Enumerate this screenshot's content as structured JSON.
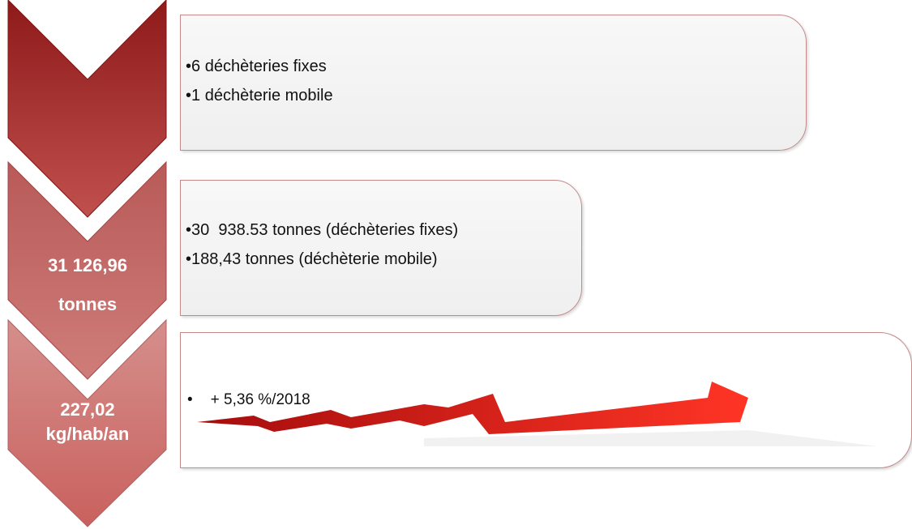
{
  "steps": [
    {
      "items": [
        "6 déchèteries fixes",
        "1 déchèterie mobile"
      ]
    },
    {
      "label": [
        "31 126,96",
        "tonnes"
      ],
      "items": [
        "30  938.53 tonnes (déchèteries fixes)",
        "188,43 tonnes (déchèterie mobile)"
      ]
    },
    {
      "label": [
        "227,02",
        "kg/hab/an"
      ],
      "items": [
        "+ 5,36 %/2018"
      ]
    }
  ]
}
